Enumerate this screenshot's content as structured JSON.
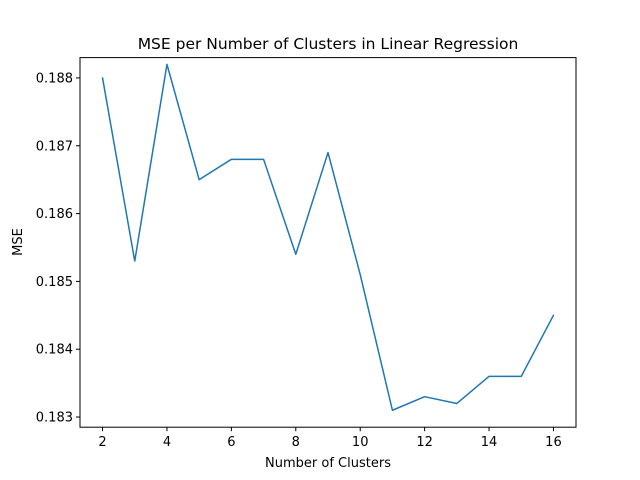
{
  "chart_data": {
    "type": "line",
    "title": "MSE per Number of Clusters in Linear Regression",
    "xlabel": "Number of Clusters",
    "ylabel": "MSE",
    "xlim": [
      1.3,
      16.7
    ],
    "ylim": [
      182.85,
      188.3
    ],
    "y_scale_note": "",
    "xticks": [
      2,
      4,
      6,
      8,
      10,
      12,
      14,
      16
    ],
    "yticks": [
      "0.183",
      "0.184",
      "0.185",
      "0.186",
      "0.187",
      "0.188"
    ],
    "ytick_values": [
      0.183,
      0.184,
      0.185,
      0.186,
      0.187,
      0.188
    ],
    "grid": false,
    "legend": "none",
    "color": "#1f77b4",
    "series": [
      {
        "x": [
          2,
          3,
          4,
          5,
          6,
          7,
          8,
          9,
          10,
          11,
          12,
          13,
          14,
          15,
          16
        ],
        "values": [
          0.188,
          0.1853,
          0.1882,
          0.1865,
          0.1868,
          0.1868,
          0.1854,
          0.1869,
          0.1851,
          0.1831,
          0.1833,
          0.1832,
          0.1836,
          0.1836,
          0.1845
        ]
      }
    ]
  }
}
